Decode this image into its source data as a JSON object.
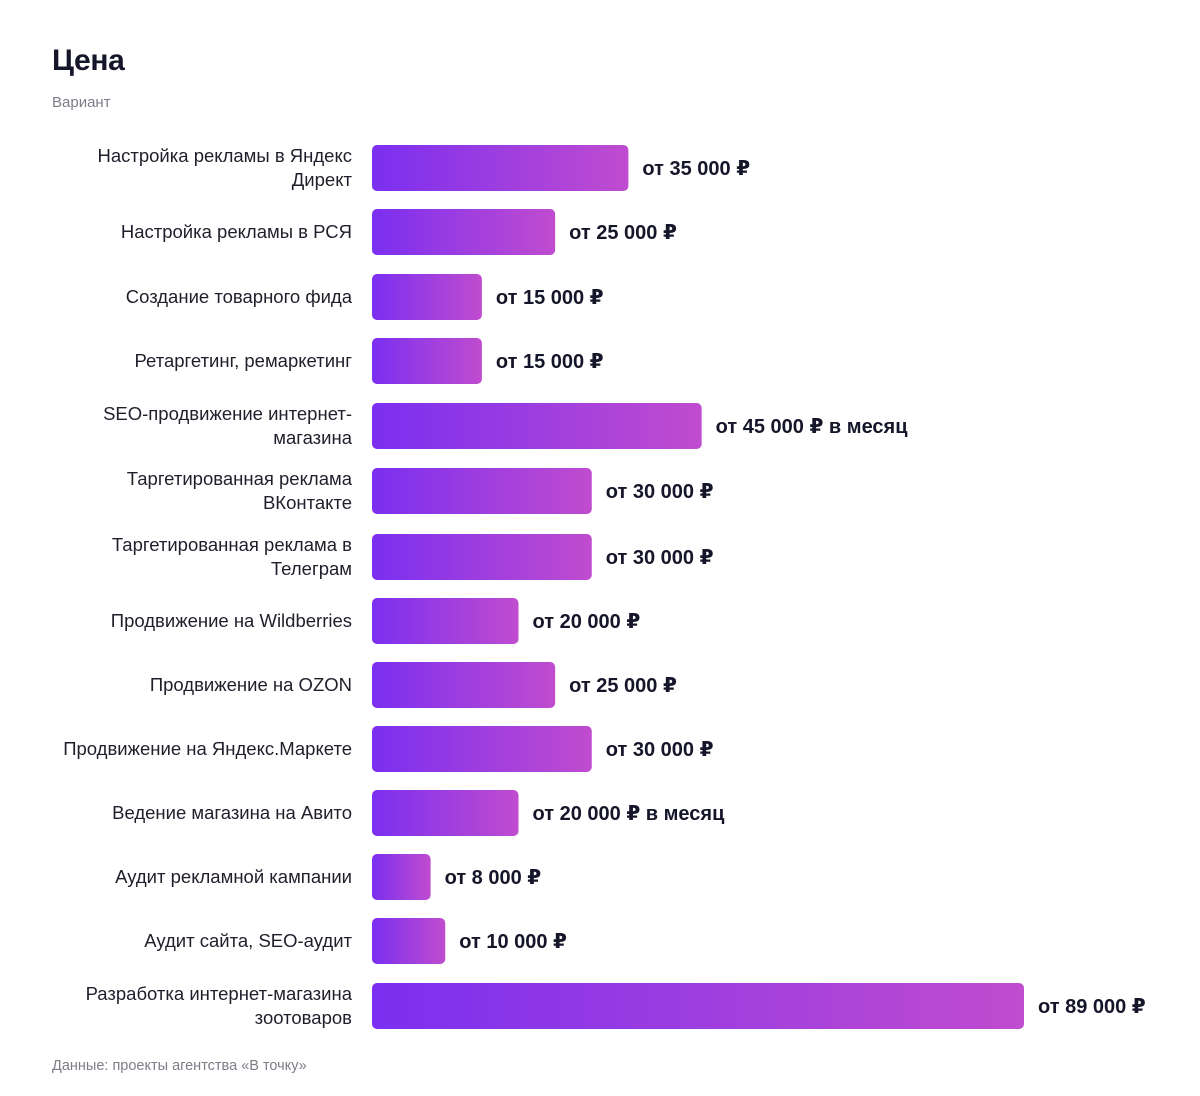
{
  "chart_data": {
    "type": "bar",
    "orientation": "horizontal",
    "title": "Цена",
    "subtitle": "Вариант",
    "source": "Данные: проекты агентства «В точку»",
    "categories": [
      "Настройка рекламы в Яндекс Директ",
      "Настройка рекламы в РСЯ",
      "Создание товарного фида",
      "Ретаргетинг, ремаркетинг",
      "SEO-продвижение интернет-магазина",
      "Таргетированная реклама ВКонтакте",
      "Таргетированная реклама в Телеграм",
      "Продвижение на Wildberries",
      "Продвижение на OZON",
      "Продвижение на Яндекс.Маркете",
      "Ведение магазина на Авито",
      "Аудит рекламной кампании",
      "Аудит сайта, SEO-аудит",
      "Разработка интернет-магазина зоотоваров"
    ],
    "values": [
      35000,
      25000,
      15000,
      15000,
      45000,
      30000,
      30000,
      20000,
      25000,
      30000,
      20000,
      8000,
      10000,
      89000
    ],
    "value_labels": [
      "от 35 000 ₽",
      "от 25 000 ₽",
      "от 15 000 ₽",
      "от 15 000 ₽",
      "от 45 000 ₽ в месяц",
      "от 30 000 ₽",
      "от 30 000 ₽",
      "от 20 000 ₽",
      "от 25 000 ₽",
      "от 30 000 ₽",
      "от 20 000 ₽ в месяц",
      "от 8 000 ₽",
      "от 10 000 ₽",
      "от 89 000 ₽"
    ],
    "xlim": [
      0,
      89000
    ],
    "grid": false,
    "legend": "none",
    "bar_gradient": [
      "#7b2ff0",
      "#c04ccf"
    ]
  }
}
